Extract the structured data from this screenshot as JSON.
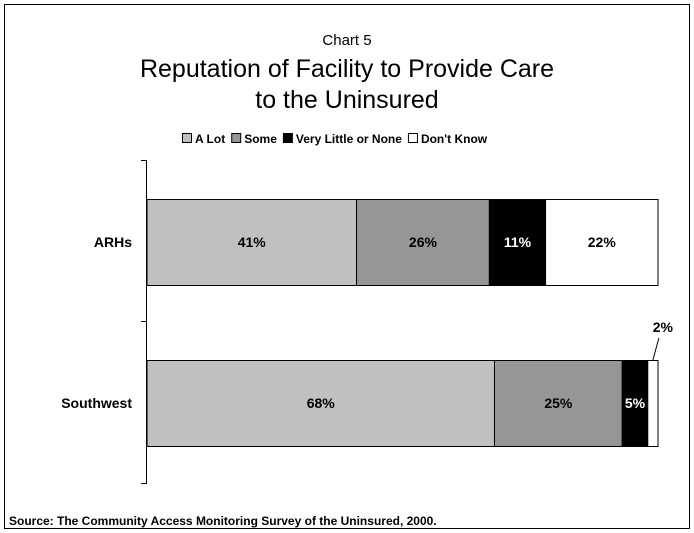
{
  "chart_data": {
    "type": "bar",
    "stacked": true,
    "orientation": "horizontal",
    "percent_scale": true,
    "chart_number": "Chart 5",
    "title_lines": [
      "Reputation of Facility to Provide Care",
      "to the Uninsured"
    ],
    "categories": [
      "ARHs",
      "Southwest"
    ],
    "series": [
      {
        "name": "A Lot",
        "values": [
          41,
          68
        ],
        "labels": [
          "41%",
          "68%"
        ],
        "color": "#c0c0c0",
        "label_color": "#000000"
      },
      {
        "name": "Some",
        "values": [
          26,
          25
        ],
        "labels": [
          "26%",
          "25%"
        ],
        "color": "#969696",
        "label_color": "#000000"
      },
      {
        "name": "Very Little or None",
        "values": [
          11,
          5
        ],
        "labels": [
          "11%",
          "5%"
        ],
        "color": "#000000",
        "label_color": "#ffffff"
      },
      {
        "name": "Don't Know",
        "values": [
          22,
          2
        ],
        "labels": [
          "22%",
          "2%"
        ],
        "color": "#ffffff",
        "label_color": "#000000"
      }
    ],
    "xlim": [
      0,
      100
    ],
    "legend_position": "top",
    "grid": false
  },
  "source": "Source: The Community Access Monitoring Survey of the Uninsured, 2000."
}
